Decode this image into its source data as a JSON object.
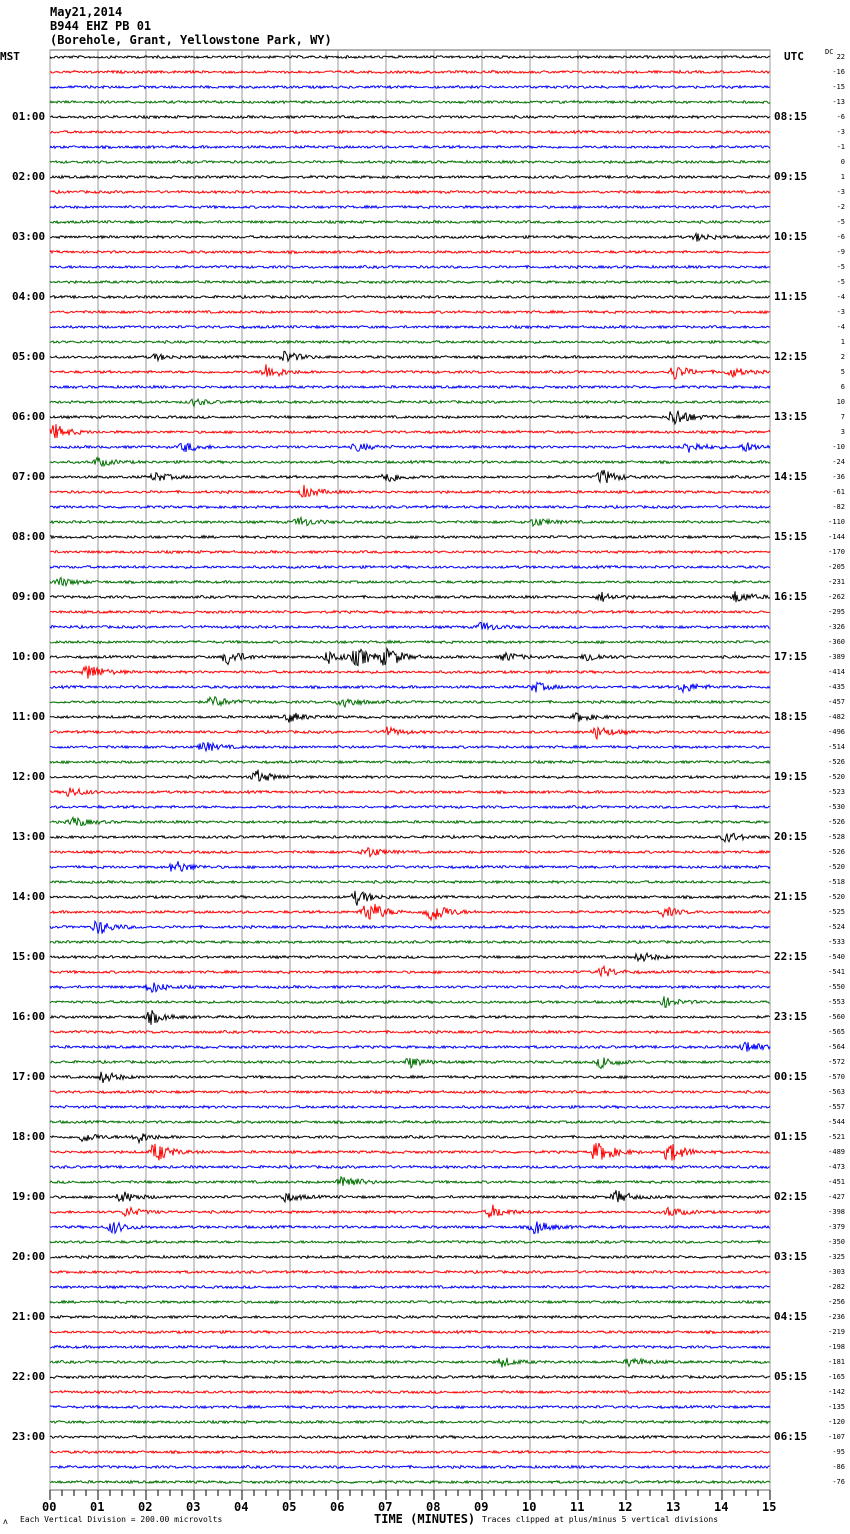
{
  "header": {
    "date": "May21,2014",
    "station": "B944 EHZ PB 01",
    "location": "(Borehole, Grant, Yellowstone Park, WY)"
  },
  "left_axis_label": "MST",
  "right_axis_label": "UTC",
  "dc_label": "DC",
  "footer": {
    "scale_icon": "ʌ",
    "scale_note": "Each Vertical Division =  200.00 microvolts",
    "xlabel": "TIME (MINUTES)",
    "clip_note": "Traces clipped at plus/minus 5 vertical divisions"
  },
  "chart_data": {
    "type": "line",
    "title": "B944 EHZ PB 01 helicorder",
    "xlabel": "TIME (MINUTES)",
    "xlim": [
      0,
      15
    ],
    "x_ticks": [
      "00",
      "01",
      "02",
      "03",
      "04",
      "05",
      "06",
      "07",
      "08",
      "09",
      "10",
      "11",
      "12",
      "13",
      "14",
      "15"
    ],
    "minor_tick_step": 0.25,
    "traces_per_hour": 4,
    "trace_colors": [
      "#000000",
      "#ff0000",
      "#0000ff",
      "#007000"
    ],
    "grid_color": "#999999",
    "mst_labels": [
      "",
      "01:00",
      "02:00",
      "03:00",
      "04:00",
      "05:00",
      "06:00",
      "07:00",
      "08:00",
      "09:00",
      "10:00",
      "11:00",
      "12:00",
      "13:00",
      "14:00",
      "15:00",
      "16:00",
      "17:00",
      "18:00",
      "19:00",
      "20:00",
      "21:00",
      "22:00",
      "23:00"
    ],
    "utc_labels": [
      "",
      "08:15",
      "09:15",
      "10:15",
      "11:15",
      "12:15",
      "13:15",
      "14:15",
      "15:15",
      "16:15",
      "17:15",
      "18:15",
      "19:15",
      "20:15",
      "21:15",
      "22:15",
      "23:15",
      "00:15",
      "01:15",
      "02:15",
      "03:15",
      "04:15",
      "05:15",
      "06:15"
    ],
    "dc_offsets": [
      "22",
      "-16",
      "-15",
      "-13",
      "-6",
      "-3",
      "-1",
      "0",
      "1",
      "-3",
      "-2",
      "-5",
      "-6",
      "-9",
      "-5",
      "-5",
      "-4",
      "-3",
      "-4",
      "1",
      "2",
      "5",
      "6",
      "10",
      "7",
      "3",
      "-10",
      "-24",
      "-36",
      "-61",
      "-82",
      "-110",
      "-144",
      "-170",
      "-205",
      "-231",
      "-262",
      "-295",
      "-326",
      "-360",
      "-389",
      "-414",
      "-435",
      "-457",
      "-482",
      "-496",
      "-514",
      "-526",
      "-520",
      "-523",
      "-530",
      "-526",
      "-528",
      "-526",
      "-520",
      "-518",
      "-520",
      "-525",
      "-524",
      "-533",
      "-540",
      "-541",
      "-550",
      "-553",
      "-560",
      "-565",
      "-564",
      "-572",
      "-570",
      "-563",
      "-557",
      "-544",
      "-521",
      "-489",
      "-473",
      "-451",
      "-427",
      "-398",
      "-379",
      "-350",
      "-325",
      "-303",
      "-282",
      "-256",
      "-236",
      "-219",
      "-198",
      "-181",
      "-165",
      "-142",
      "-135",
      "-120",
      "-107",
      "-95",
      "-86",
      "-76"
    ],
    "events": [
      [
        12,
        13.5,
        0.8
      ],
      [
        20,
        4.9,
        1.2
      ],
      [
        20,
        2.2,
        0.6
      ],
      [
        21,
        4.5,
        1.8
      ],
      [
        21,
        13.0,
        1.5
      ],
      [
        21,
        14.2,
        1.0
      ],
      [
        23,
        3.0,
        0.7
      ],
      [
        24,
        13.0,
        2.2
      ],
      [
        25,
        0.1,
        1.5
      ],
      [
        26,
        2.8,
        1.0
      ],
      [
        26,
        6.4,
        0.8
      ],
      [
        26,
        13.3,
        1.2
      ],
      [
        26,
        14.5,
        0.9
      ],
      [
        27,
        1.0,
        0.9
      ],
      [
        28,
        2.2,
        0.9
      ],
      [
        28,
        7.0,
        1.3
      ],
      [
        28,
        11.5,
        1.6
      ],
      [
        29,
        5.3,
        1.2
      ],
      [
        31,
        5.2,
        1.0
      ],
      [
        31,
        10.1,
        0.9
      ],
      [
        35,
        0.2,
        0.9
      ],
      [
        36,
        11.5,
        0.9
      ],
      [
        36,
        14.3,
        1.2
      ],
      [
        38,
        9.0,
        1.0
      ],
      [
        40,
        3.7,
        1.6
      ],
      [
        40,
        5.8,
        1.3
      ],
      [
        40,
        6.4,
        2.0
      ],
      [
        40,
        7.0,
        2.4
      ],
      [
        40,
        9.5,
        0.9
      ],
      [
        40,
        11.2,
        1.0
      ],
      [
        41,
        0.8,
        1.8
      ],
      [
        42,
        10.1,
        1.0
      ],
      [
        42,
        13.2,
        1.1
      ],
      [
        43,
        3.4,
        1.2
      ],
      [
        43,
        6.1,
        1.3
      ],
      [
        44,
        5.0,
        1.0
      ],
      [
        44,
        11.0,
        0.9
      ],
      [
        45,
        7.0,
        1.0
      ],
      [
        45,
        11.4,
        1.3
      ],
      [
        46,
        3.2,
        1.1
      ],
      [
        48,
        4.3,
        1.4
      ],
      [
        49,
        0.4,
        1.0
      ],
      [
        51,
        0.5,
        1.1
      ],
      [
        52,
        14.1,
        1.1
      ],
      [
        53,
        6.6,
        1.2
      ],
      [
        54,
        2.6,
        1.4
      ],
      [
        56,
        6.4,
        1.5
      ],
      [
        57,
        6.6,
        3.0
      ],
      [
        57,
        7.9,
        3.2
      ],
      [
        57,
        12.8,
        1.0
      ],
      [
        58,
        1.0,
        1.6
      ],
      [
        60,
        12.3,
        1.0
      ],
      [
        61,
        11.5,
        1.1
      ],
      [
        62,
        2.1,
        1.2
      ],
      [
        63,
        12.8,
        1.0
      ],
      [
        64,
        2.1,
        1.3
      ],
      [
        66,
        14.5,
        1.3
      ],
      [
        67,
        7.5,
        1.1
      ],
      [
        67,
        11.5,
        1.3
      ],
      [
        68,
        1.1,
        1.2
      ],
      [
        72,
        0.7,
        1.0
      ],
      [
        72,
        1.8,
        1.2
      ],
      [
        73,
        2.2,
        2.2
      ],
      [
        73,
        11.4,
        2.8
      ],
      [
        73,
        12.9,
        2.4
      ],
      [
        75,
        6.1,
        1.8
      ],
      [
        76,
        1.5,
        1.2
      ],
      [
        76,
        4.9,
        1.0
      ],
      [
        76,
        11.8,
        1.3
      ],
      [
        77,
        1.6,
        1.0
      ],
      [
        77,
        9.2,
        1.4
      ],
      [
        77,
        12.9,
        1.0
      ],
      [
        78,
        1.3,
        1.3
      ],
      [
        78,
        10.1,
        1.5
      ],
      [
        87,
        9.4,
        1.0
      ],
      [
        87,
        12.1,
        1.0
      ]
    ]
  }
}
